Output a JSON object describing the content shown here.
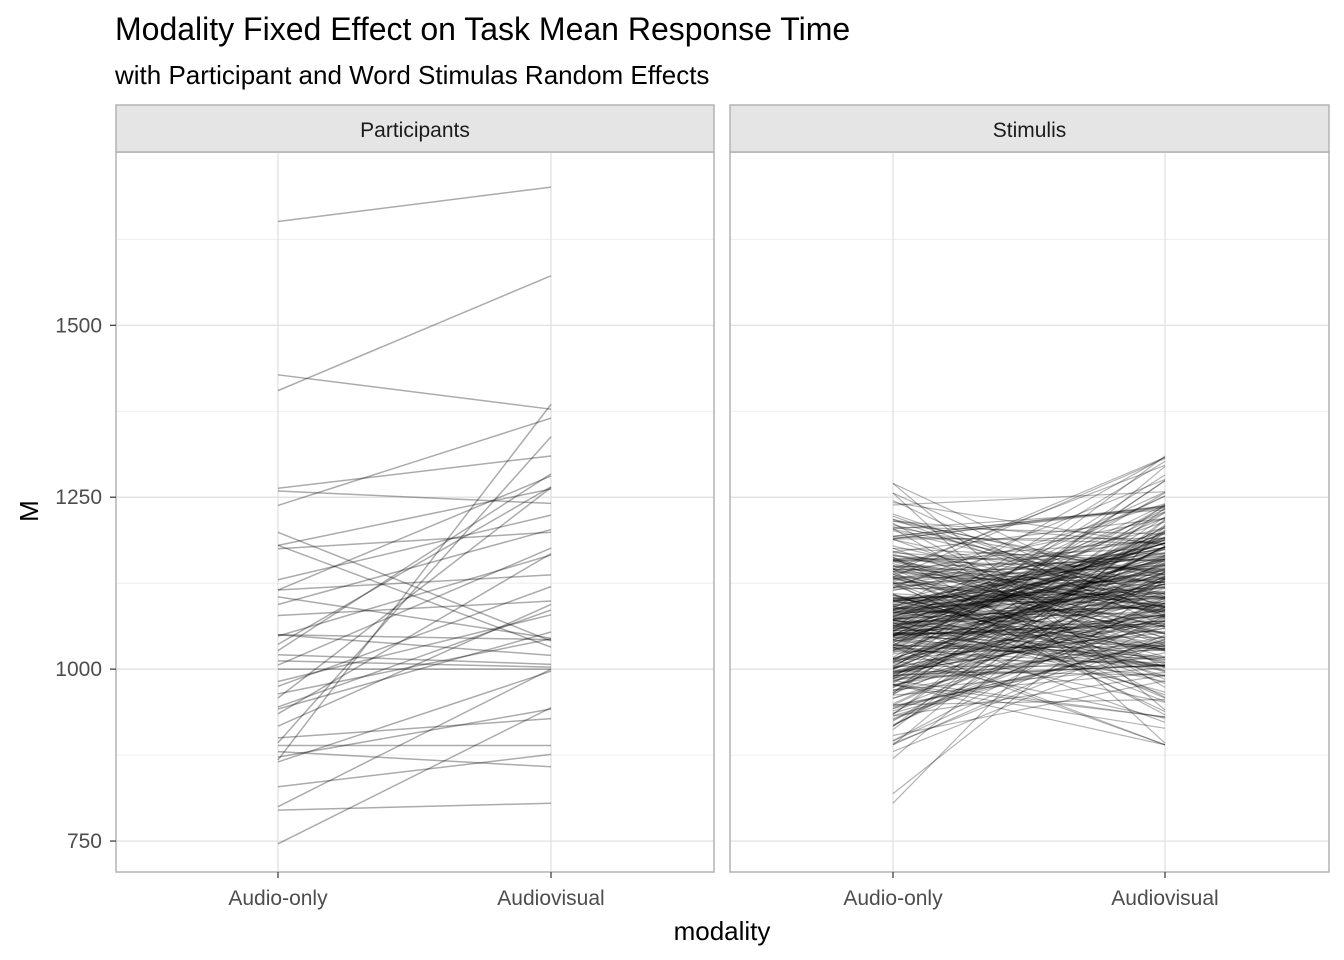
{
  "chart_data": {
    "type": "line",
    "title": "Modality Fixed Effect on Task Mean Response Time",
    "subtitle": "with Participant and Word Stimulas Random Effects",
    "xlabel": "modality",
    "ylabel": "M",
    "categories": [
      "Audio-only",
      "Audiovisual"
    ],
    "ylim": [
      705,
      1752
    ],
    "yticks": [
      750,
      1000,
      1250,
      1500
    ],
    "grid": true,
    "colors": {
      "line": "#000000",
      "strip_bg": "#e5e5e5",
      "strip_border": "#b3b3b3",
      "grid": "#ebebeb"
    },
    "panels": [
      {
        "strip": "Participants",
        "line_opacity": 0.33,
        "series": [
          [
            1651,
            1701
          ],
          [
            1405,
            1572
          ],
          [
            1428,
            1378
          ],
          [
            746,
            944
          ],
          [
            795,
            805
          ],
          [
            829,
            876
          ],
          [
            868,
            1385
          ],
          [
            800,
            1000
          ],
          [
            1259,
            1241
          ],
          [
            1238,
            1365
          ],
          [
            1180,
            1262
          ],
          [
            1175,
            1199
          ],
          [
            1115,
            1137
          ],
          [
            1105,
            1045
          ],
          [
            1078,
            1099
          ],
          [
            1050,
            1020
          ],
          [
            1048,
            1166
          ],
          [
            1036,
            1265
          ],
          [
            1027,
            1284
          ],
          [
            1021,
            1007
          ],
          [
            1012,
            1003
          ],
          [
            982,
            1079
          ],
          [
            975,
            1120
          ],
          [
            964,
            1044
          ],
          [
            958,
            1264
          ],
          [
            945,
            1086
          ],
          [
            935,
            1168
          ],
          [
            917,
            1094
          ],
          [
            893,
            1338
          ],
          [
            889,
            889
          ],
          [
            880,
            858
          ],
          [
            872,
            942
          ],
          [
            865,
            997
          ],
          [
            1263,
            1310
          ],
          [
            1199,
            1041
          ],
          [
            1130,
            1224
          ],
          [
            1094,
            1203
          ],
          [
            1006,
            1176
          ],
          [
            942,
            1054
          ],
          [
            1115,
            1281
          ],
          [
            1000,
            1000
          ],
          [
            1050,
            1043
          ],
          [
            1180,
            1032
          ],
          [
            900,
            928
          ]
        ]
      },
      {
        "strip": "Stimulis",
        "line_opacity": 0.3,
        "series_count": 320,
        "series_ranges": {
          "audio_only": [
            805,
            1270
          ],
          "audiovisual": [
            890,
            1310
          ]
        },
        "mean_audio_only": 1065,
        "mean_audiovisual": 1110,
        "note_on_ranges": ""
      }
    ]
  }
}
